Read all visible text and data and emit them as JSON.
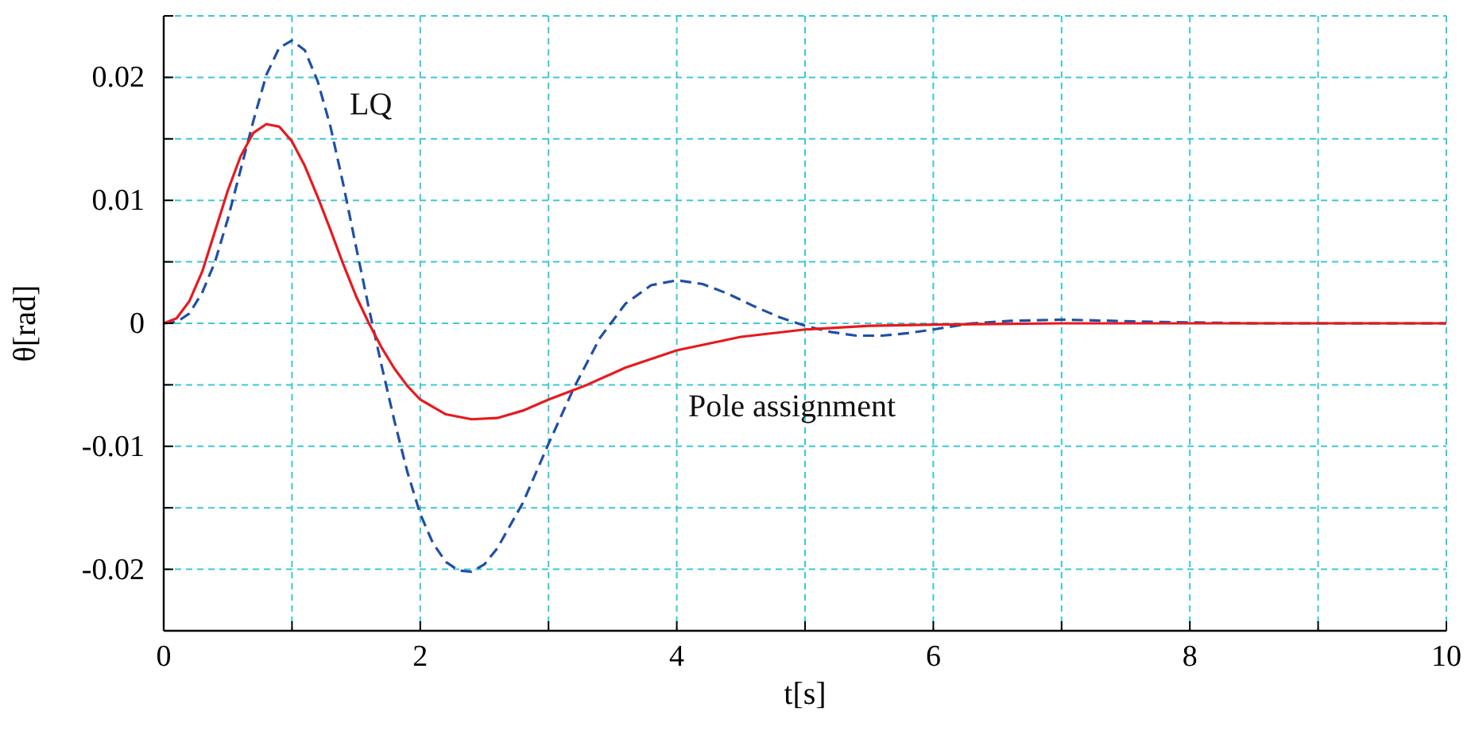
{
  "chart_data": {
    "type": "line",
    "xlabel": "t[s]",
    "ylabel": "θ[rad]",
    "xlim": [
      0,
      10
    ],
    "ylim": [
      -0.025,
      0.025
    ],
    "xticks": [
      0,
      {
        "value": 1,
        "label": null
      },
      2,
      {
        "value": 3,
        "label": null
      },
      4,
      {
        "value": 5,
        "label": null
      },
      6,
      {
        "value": 7,
        "label": null
      },
      8,
      {
        "value": 9,
        "label": null
      },
      10
    ],
    "yticks": [
      {
        "value": -0.025,
        "label": null
      },
      -0.02,
      {
        "value": -0.015,
        "label": null
      },
      -0.01,
      {
        "value": -0.005,
        "label": null
      },
      0,
      {
        "value": 0.005,
        "label": null
      },
      0.01,
      {
        "value": 0.015,
        "label": null
      },
      0.02,
      {
        "value": 0.025,
        "label": null
      }
    ],
    "grid": true,
    "series": [
      {
        "name": "LQ",
        "color": "#1f4fa8",
        "line_style": "dashed",
        "x": [
          0,
          0.1,
          0.2,
          0.3,
          0.4,
          0.5,
          0.6,
          0.7,
          0.8,
          0.9,
          1.0,
          1.1,
          1.2,
          1.3,
          1.4,
          1.5,
          1.6,
          1.7,
          1.8,
          1.9,
          2.0,
          2.1,
          2.2,
          2.3,
          2.4,
          2.5,
          2.6,
          2.8,
          3.0,
          3.2,
          3.4,
          3.6,
          3.8,
          4.0,
          4.2,
          4.4,
          4.6,
          4.8,
          5.0,
          5.2,
          5.4,
          5.6,
          5.8,
          6.0,
          6.3,
          6.6,
          7.0,
          7.4,
          7.8,
          8.5,
          10
        ],
        "values": [
          0,
          0.0001,
          0.0008,
          0.0025,
          0.005,
          0.0085,
          0.0125,
          0.0165,
          0.0202,
          0.0224,
          0.023,
          0.0222,
          0.0197,
          0.016,
          0.0113,
          0.0062,
          0.0012,
          -0.0035,
          -0.008,
          -0.0121,
          -0.0155,
          -0.0179,
          -0.0194,
          -0.0201,
          -0.0202,
          -0.0196,
          -0.0183,
          -0.0146,
          -0.0098,
          -0.0052,
          -0.0012,
          0.0016,
          0.0031,
          0.0035,
          0.0032,
          0.0024,
          0.0014,
          0.0005,
          -0.0002,
          -0.0007,
          -0.001,
          -0.001,
          -0.0008,
          -0.0005,
          0,
          0.0002,
          0.0003,
          0.0002,
          0.0001,
          0,
          0
        ]
      },
      {
        "name": "Pole assignment",
        "color": "#e8191e",
        "line_style": "solid",
        "x": [
          0,
          0.1,
          0.2,
          0.3,
          0.4,
          0.5,
          0.6,
          0.7,
          0.8,
          0.9,
          1.0,
          1.1,
          1.2,
          1.3,
          1.4,
          1.5,
          1.6,
          1.7,
          1.8,
          1.9,
          2.0,
          2.2,
          2.4,
          2.6,
          2.8,
          3.0,
          3.3,
          3.6,
          4.0,
          4.5,
          5.0,
          5.5,
          6.0,
          7.0,
          10
        ],
        "values": [
          0,
          0.0004,
          0.0018,
          0.0042,
          0.0075,
          0.0108,
          0.0136,
          0.0155,
          0.0162,
          0.016,
          0.0148,
          0.0128,
          0.0103,
          0.0076,
          0.0048,
          0.0022,
          0,
          -0.002,
          -0.0037,
          -0.0051,
          -0.0062,
          -0.0074,
          -0.0078,
          -0.0077,
          -0.0071,
          -0.0062,
          -0.005,
          -0.0036,
          -0.0022,
          -0.0011,
          -0.0005,
          -0.0002,
          -0.0001,
          0,
          0
        ]
      }
    ]
  }
}
